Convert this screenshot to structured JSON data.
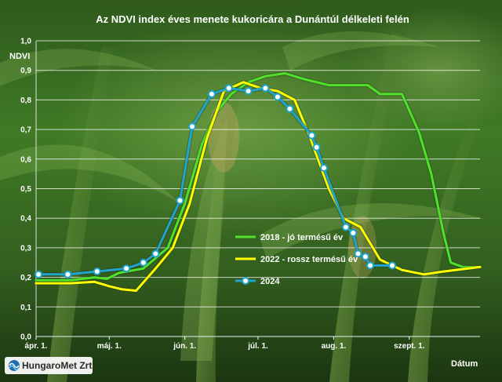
{
  "chart_data": {
    "type": "line",
    "title": "Az NDVI index éves menete kukoricára a Dunántúl délkeleti felén",
    "ylabel": "NDVI",
    "xlabel": "Dátum",
    "ylim": [
      0,
      1.0
    ],
    "yticks": [
      "0,0",
      "0,1",
      "0,2",
      "0,3",
      "0,4",
      "0,5",
      "0,6",
      "0,7",
      "0,8",
      "0,9",
      "1,0"
    ],
    "xlim": [
      "2024-04-01",
      "2024-09-30"
    ],
    "xticks": [
      {
        "date": "2024-04-01",
        "label": "ápr. 1."
      },
      {
        "date": "2024-05-01",
        "label": "máj. 1."
      },
      {
        "date": "2024-06-01",
        "label": "jún. 1."
      },
      {
        "date": "2024-07-01",
        "label": "júl. 1."
      },
      {
        "date": "2024-08-01",
        "label": "aug. 1."
      },
      {
        "date": "2024-09-01",
        "label": "szept. 1."
      }
    ],
    "grid": true,
    "legend_position": "bottom-right",
    "series": [
      {
        "name": "2018 - jó termésű év",
        "color": "#4ee32a",
        "marker": "none",
        "points": [
          [
            "2024-04-01",
            0.19
          ],
          [
            "2024-04-15",
            0.19
          ],
          [
            "2024-04-25",
            0.2
          ],
          [
            "2024-04-30",
            0.195
          ],
          [
            "2024-05-05",
            0.215
          ],
          [
            "2024-05-15",
            0.23
          ],
          [
            "2024-05-25",
            0.3
          ],
          [
            "2024-06-01",
            0.45
          ],
          [
            "2024-06-08",
            0.65
          ],
          [
            "2024-06-14",
            0.76
          ],
          [
            "2024-06-20",
            0.82
          ],
          [
            "2024-06-27",
            0.86
          ],
          [
            "2024-07-04",
            0.88
          ],
          [
            "2024-07-12",
            0.89
          ],
          [
            "2024-07-20",
            0.87
          ],
          [
            "2024-07-30",
            0.85
          ],
          [
            "2024-08-10",
            0.85
          ],
          [
            "2024-08-15",
            0.85
          ],
          [
            "2024-08-20",
            0.82
          ],
          [
            "2024-08-29",
            0.82
          ],
          [
            "2024-09-05",
            0.69
          ],
          [
            "2024-09-10",
            0.55
          ],
          [
            "2024-09-15",
            0.35
          ],
          [
            "2024-09-18",
            0.25
          ],
          [
            "2024-09-23",
            0.235
          ],
          [
            "2024-09-30",
            0.235
          ]
        ]
      },
      {
        "name": "2022 - rossz termésű év",
        "color": "#ffff00",
        "marker": "none",
        "points": [
          [
            "2024-04-01",
            0.18
          ],
          [
            "2024-04-15",
            0.18
          ],
          [
            "2024-04-25",
            0.185
          ],
          [
            "2024-05-01",
            0.17
          ],
          [
            "2024-05-06",
            0.16
          ],
          [
            "2024-05-12",
            0.155
          ],
          [
            "2024-05-20",
            0.23
          ],
          [
            "2024-05-27",
            0.3
          ],
          [
            "2024-06-03",
            0.45
          ],
          [
            "2024-06-10",
            0.67
          ],
          [
            "2024-06-17",
            0.83
          ],
          [
            "2024-06-25",
            0.86
          ],
          [
            "2024-07-02",
            0.84
          ],
          [
            "2024-07-09",
            0.83
          ],
          [
            "2024-07-16",
            0.8
          ],
          [
            "2024-07-22",
            0.68
          ],
          [
            "2024-07-30",
            0.5
          ],
          [
            "2024-08-05",
            0.4
          ],
          [
            "2024-08-12",
            0.37
          ],
          [
            "2024-08-20",
            0.26
          ],
          [
            "2024-08-29",
            0.225
          ],
          [
            "2024-09-07",
            0.21
          ],
          [
            "2024-09-15",
            0.22
          ],
          [
            "2024-09-30",
            0.235
          ]
        ]
      },
      {
        "name": "2024",
        "color": "#1fa4cc",
        "marker": "circle",
        "points": [
          [
            "2024-04-02",
            0.21
          ],
          [
            "2024-04-14",
            0.21
          ],
          [
            "2024-04-26",
            0.22
          ],
          [
            "2024-05-08",
            0.23
          ],
          [
            "2024-05-15",
            0.25
          ],
          [
            "2024-05-20",
            0.28
          ],
          [
            "2024-05-30",
            0.46
          ],
          [
            "2024-06-04",
            0.71
          ],
          [
            "2024-06-12",
            0.82
          ],
          [
            "2024-06-19",
            0.84
          ],
          [
            "2024-06-27",
            0.83
          ],
          [
            "2024-07-04",
            0.84
          ],
          [
            "2024-07-09",
            0.81
          ],
          [
            "2024-07-14",
            0.77
          ],
          [
            "2024-07-23",
            0.68
          ],
          [
            "2024-07-25",
            0.64
          ],
          [
            "2024-07-28",
            0.57
          ],
          [
            "2024-08-06",
            0.37
          ],
          [
            "2024-08-09",
            0.35
          ],
          [
            "2024-08-11",
            0.28
          ],
          [
            "2024-08-14",
            0.27
          ],
          [
            "2024-08-16",
            0.24
          ],
          [
            "2024-08-25",
            0.24
          ]
        ]
      }
    ]
  },
  "footer": {
    "logo_text": "HungaroMet Zrt."
  }
}
